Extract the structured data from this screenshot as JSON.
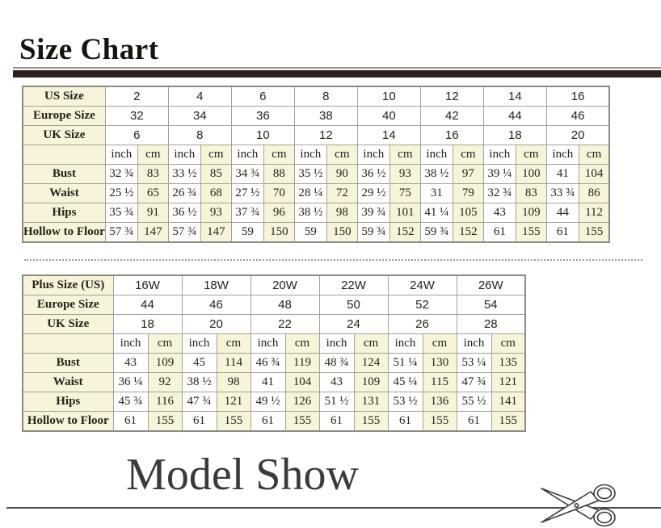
{
  "header": {
    "title": "Size Chart"
  },
  "model_show": {
    "title": "Model Show"
  },
  "icons": {
    "scissors": "scissors-icon"
  },
  "colors": {
    "cream_cell": "#f7f4da",
    "title_bar": "#2e211b",
    "grid_line": "#a6a196",
    "text": "#27221a"
  },
  "standard_table": {
    "units": [
      "inch",
      "cm"
    ],
    "size_rows": [
      {
        "label": "US Size",
        "values": [
          "2",
          "4",
          "6",
          "8",
          "10",
          "12",
          "14",
          "16"
        ]
      },
      {
        "label": "Europe Size",
        "values": [
          "32",
          "34",
          "36",
          "38",
          "40",
          "42",
          "44",
          "46"
        ]
      },
      {
        "label": "UK Size",
        "values": [
          "6",
          "8",
          "10",
          "12",
          "14",
          "16",
          "18",
          "20"
        ]
      }
    ],
    "measure_rows": [
      {
        "label": "Bust",
        "values": [
          "32 ¾",
          "83",
          "33 ½",
          "85",
          "34 ¾",
          "88",
          "35 ½",
          "90",
          "36 ½",
          "93",
          "38 ½",
          "97",
          "39 ¼",
          "100",
          "41",
          "104"
        ]
      },
      {
        "label": "Waist",
        "values": [
          "25 ½",
          "65",
          "26 ¾",
          "68",
          "27 ½",
          "70",
          "28 ¼",
          "72",
          "29 ½",
          "75",
          "31",
          "79",
          "32 ¾",
          "83",
          "33 ¾",
          "86"
        ]
      },
      {
        "label": "Hips",
        "values": [
          "35 ¾",
          "91",
          "36 ½",
          "93",
          "37 ¾",
          "96",
          "38 ½",
          "98",
          "39 ¾",
          "101",
          "41 ¼",
          "105",
          "43",
          "109",
          "44",
          "112"
        ]
      },
      {
        "label": "Hollow to Floor",
        "values": [
          "57 ¾",
          "147",
          "57 ¾",
          "147",
          "59",
          "150",
          "59",
          "150",
          "59 ¾",
          "152",
          "59 ¾",
          "152",
          "61",
          "155",
          "61",
          "155"
        ]
      }
    ]
  },
  "plus_table": {
    "units": [
      "inch",
      "cm"
    ],
    "size_rows": [
      {
        "label": "Plus Size (US)",
        "values": [
          "16W",
          "18W",
          "20W",
          "22W",
          "24W",
          "26W"
        ]
      },
      {
        "label": "Europe Size",
        "values": [
          "44",
          "46",
          "48",
          "50",
          "52",
          "54"
        ]
      },
      {
        "label": "UK Size",
        "values": [
          "18",
          "20",
          "22",
          "24",
          "26",
          "28"
        ]
      }
    ],
    "measure_rows": [
      {
        "label": "Bust",
        "values": [
          "43",
          "109",
          "45",
          "114",
          "46 ¾",
          "119",
          "48 ¾",
          "124",
          "51 ¼",
          "130",
          "53 ¼",
          "135"
        ]
      },
      {
        "label": "Waist",
        "values": [
          "36 ¼",
          "92",
          "38 ½",
          "98",
          "41",
          "104",
          "43",
          "109",
          "45 ¼",
          "115",
          "47 ¾",
          "121"
        ]
      },
      {
        "label": "Hips",
        "values": [
          "45 ¾",
          "116",
          "47 ¾",
          "121",
          "49 ½",
          "126",
          "51 ½",
          "131",
          "53 ½",
          "136",
          "55 ½",
          "141"
        ]
      },
      {
        "label": "Hollow to Floor",
        "values": [
          "61",
          "155",
          "61",
          "155",
          "61",
          "155",
          "61",
          "155",
          "61",
          "155",
          "61",
          "155"
        ]
      }
    ]
  }
}
